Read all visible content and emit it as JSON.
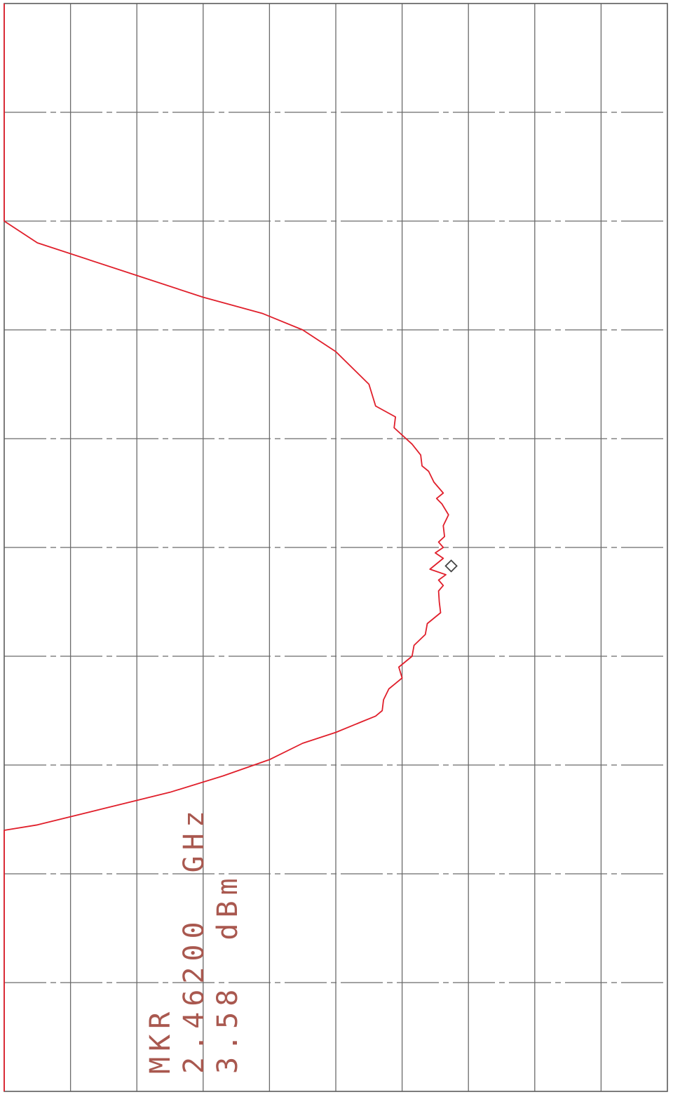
{
  "chart_data": {
    "type": "line",
    "title": "",
    "xlabel": "",
    "ylabel": "",
    "grid": true,
    "grid_divisions": {
      "horizontal": 10,
      "vertical": 10
    },
    "orientation": "rotated-90",
    "marker": {
      "label": "MKR",
      "frequency": "2.46200",
      "frequency_unit": "GHz",
      "level": "3.58",
      "level_unit": "dBm",
      "position": [
        5.17,
        3.26
      ]
    },
    "series": [
      {
        "color": "#e01f2b",
        "points": [
          [
            0,
            10
          ],
          [
            1,
            10
          ],
          [
            2,
            10
          ],
          [
            2.2,
            9.5
          ],
          [
            2.5,
            8.0
          ],
          [
            2.7,
            7.0
          ],
          [
            2.85,
            6.1
          ],
          [
            3.0,
            5.5
          ],
          [
            3.2,
            5.0
          ],
          [
            3.5,
            4.5
          ],
          [
            3.7,
            4.4
          ],
          [
            3.8,
            4.1
          ],
          [
            3.9,
            4.12
          ],
          [
            4.05,
            3.85
          ],
          [
            4.15,
            3.72
          ],
          [
            4.25,
            3.7
          ],
          [
            4.3,
            3.6
          ],
          [
            4.4,
            3.52
          ],
          [
            4.5,
            3.38
          ],
          [
            4.55,
            3.48
          ],
          [
            4.6,
            3.4
          ],
          [
            4.7,
            3.3
          ],
          [
            4.8,
            3.38
          ],
          [
            4.9,
            3.36
          ],
          [
            4.95,
            3.45
          ],
          [
            5.0,
            3.38
          ],
          [
            5.05,
            3.5
          ],
          [
            5.1,
            3.38
          ],
          [
            5.2,
            3.58
          ],
          [
            5.25,
            3.34
          ],
          [
            5.3,
            3.45
          ],
          [
            5.35,
            3.38
          ],
          [
            5.4,
            3.45
          ],
          [
            5.5,
            3.44
          ],
          [
            5.6,
            3.42
          ],
          [
            5.7,
            3.62
          ],
          [
            5.8,
            3.65
          ],
          [
            5.9,
            3.82
          ],
          [
            6.0,
            3.85
          ],
          [
            6.1,
            4.05
          ],
          [
            6.2,
            4.0
          ],
          [
            6.25,
            4.1
          ],
          [
            6.3,
            4.2
          ],
          [
            6.4,
            4.28
          ],
          [
            6.5,
            4.3
          ],
          [
            6.55,
            4.4
          ],
          [
            6.6,
            4.6
          ],
          [
            6.7,
            5.0
          ],
          [
            6.8,
            5.5
          ],
          [
            6.95,
            6.0
          ],
          [
            7.1,
            6.7
          ],
          [
            7.25,
            7.5
          ],
          [
            7.4,
            8.5
          ],
          [
            7.55,
            9.5
          ],
          [
            7.6,
            10
          ],
          [
            8,
            10
          ],
          [
            9,
            10
          ],
          [
            10,
            10
          ]
        ]
      }
    ]
  }
}
